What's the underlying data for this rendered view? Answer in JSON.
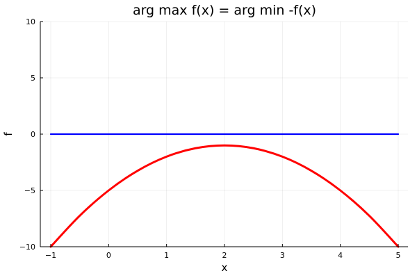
{
  "chart_data": {
    "type": "line",
    "title": "arg max f(x) = arg min -f(x)",
    "xlabel": "x",
    "ylabel": "f",
    "xlim": [
      -1,
      5
    ],
    "ylim": [
      -10,
      10
    ],
    "xticks": [
      -1,
      0,
      1,
      2,
      3,
      4,
      5
    ],
    "yticks": [
      10,
      5,
      0,
      -5,
      -10
    ],
    "xtick_labels": [
      "−1",
      "0",
      "1",
      "2",
      "3",
      "4",
      "5"
    ],
    "ytick_labels": [
      "10",
      "5",
      "0",
      "−5",
      "−10"
    ],
    "grid": true,
    "series": [
      {
        "color": "#0000ff",
        "x": [
          -1,
          5
        ],
        "y": [
          0,
          0
        ]
      },
      {
        "color": "#ff0000",
        "x": [
          -1,
          -0.5,
          0,
          0.5,
          1,
          1.5,
          2,
          2.5,
          3,
          3.5,
          4,
          4.5,
          5
        ],
        "y": [
          -10,
          -7.25,
          -5,
          -3.25,
          -2,
          -1.25,
          -1,
          -1.25,
          -2,
          -3.25,
          -5,
          -7.25,
          -10
        ]
      }
    ]
  }
}
